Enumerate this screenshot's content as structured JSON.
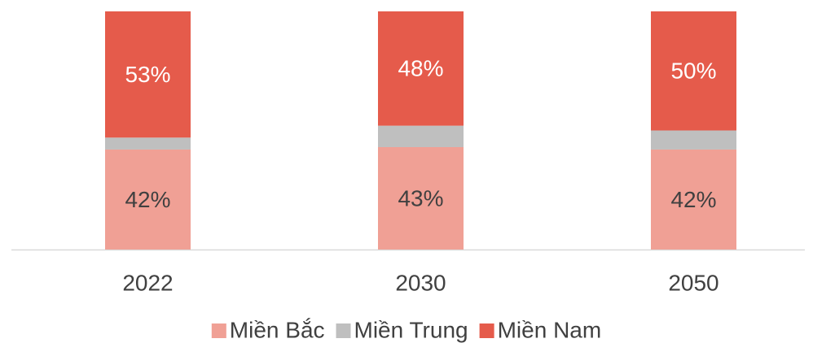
{
  "chart_data": {
    "type": "stacked_bar",
    "categories": [
      "2022",
      "2030",
      "2050"
    ],
    "series": [
      {
        "name": "Miền Bắc",
        "color": "#f0a095",
        "values": [
          42,
          43,
          42
        ],
        "value_labels": [
          "42%",
          "43%",
          "42%"
        ]
      },
      {
        "name": "Miền Trung",
        "color": "#bfbfbf",
        "values": [
          5,
          9,
          8
        ]
      },
      {
        "name": "Miền Nam",
        "color": "#e55b4b",
        "values": [
          53,
          48,
          50
        ],
        "value_labels": [
          "53%",
          "48%",
          "50%"
        ]
      }
    ],
    "ylim": [
      0,
      100
    ],
    "legend": "bottom"
  }
}
